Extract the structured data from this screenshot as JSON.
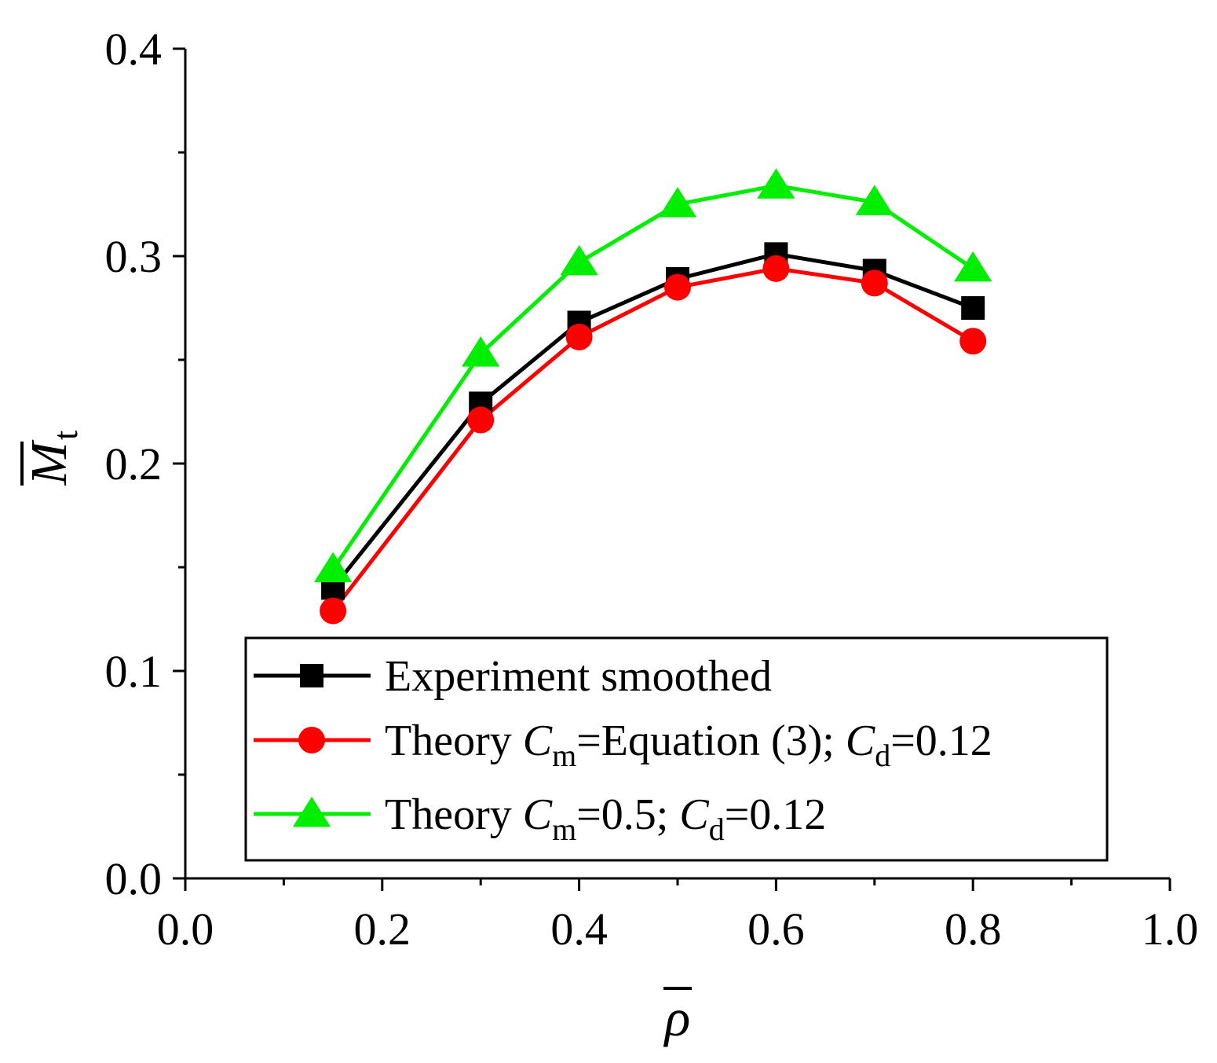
{
  "chart_data": {
    "type": "line",
    "title": "",
    "xlabel": "ρ",
    "xlabel_overline": true,
    "ylabel_main": "M",
    "ylabel_sub": "t",
    "ylabel_overline": true,
    "xlim": [
      0.0,
      1.0
    ],
    "ylim": [
      0.0,
      0.4
    ],
    "x_ticks": [
      "0.0",
      "0.2",
      "0.4",
      "0.6",
      "0.8",
      "1.0"
    ],
    "y_ticks": [
      "0.0",
      "0.1",
      "0.2",
      "0.3",
      "0.4"
    ],
    "x_tick_values": [
      0.0,
      0.2,
      0.4,
      0.6,
      0.8,
      1.0
    ],
    "y_tick_values": [
      0.0,
      0.1,
      0.2,
      0.3,
      0.4
    ],
    "x_minor_step": 0.1,
    "y_minor_step": 0.05,
    "grid": false,
    "legend_position": "bottom-center",
    "series": [
      {
        "name": "Experiment smoothed",
        "color": "#000000",
        "marker": "square",
        "legend": {
          "prefix": "Experiment smoothed"
        },
        "x": [
          0.15,
          0.3,
          0.4,
          0.5,
          0.6,
          0.7,
          0.8
        ],
        "values": [
          0.14,
          0.229,
          0.268,
          0.289,
          0.301,
          0.293,
          0.275
        ]
      },
      {
        "name": "Theory Cm=Equation (3); Cd=0.12",
        "color": "#ff0000",
        "marker": "circle",
        "legend": {
          "prefix": "Theory ",
          "cm_value": "=Equation (3); ",
          "cd_value": "=0.12"
        },
        "x": [
          0.15,
          0.3,
          0.4,
          0.5,
          0.6,
          0.7,
          0.8
        ],
        "values": [
          0.129,
          0.221,
          0.261,
          0.285,
          0.294,
          0.287,
          0.259
        ]
      },
      {
        "name": "Theory Cm=0.5; Cd=0.12",
        "color": "#00ee00",
        "marker": "triangle",
        "legend": {
          "prefix": "Theory ",
          "cm_value": "=0.5; ",
          "cd_value": "=0.12"
        },
        "x": [
          0.15,
          0.3,
          0.4,
          0.5,
          0.6,
          0.7,
          0.8
        ],
        "values": [
          0.149,
          0.253,
          0.297,
          0.325,
          0.334,
          0.326,
          0.294
        ]
      }
    ],
    "legend_symbols": {
      "c": "C",
      "m": "m",
      "d": "d"
    }
  }
}
